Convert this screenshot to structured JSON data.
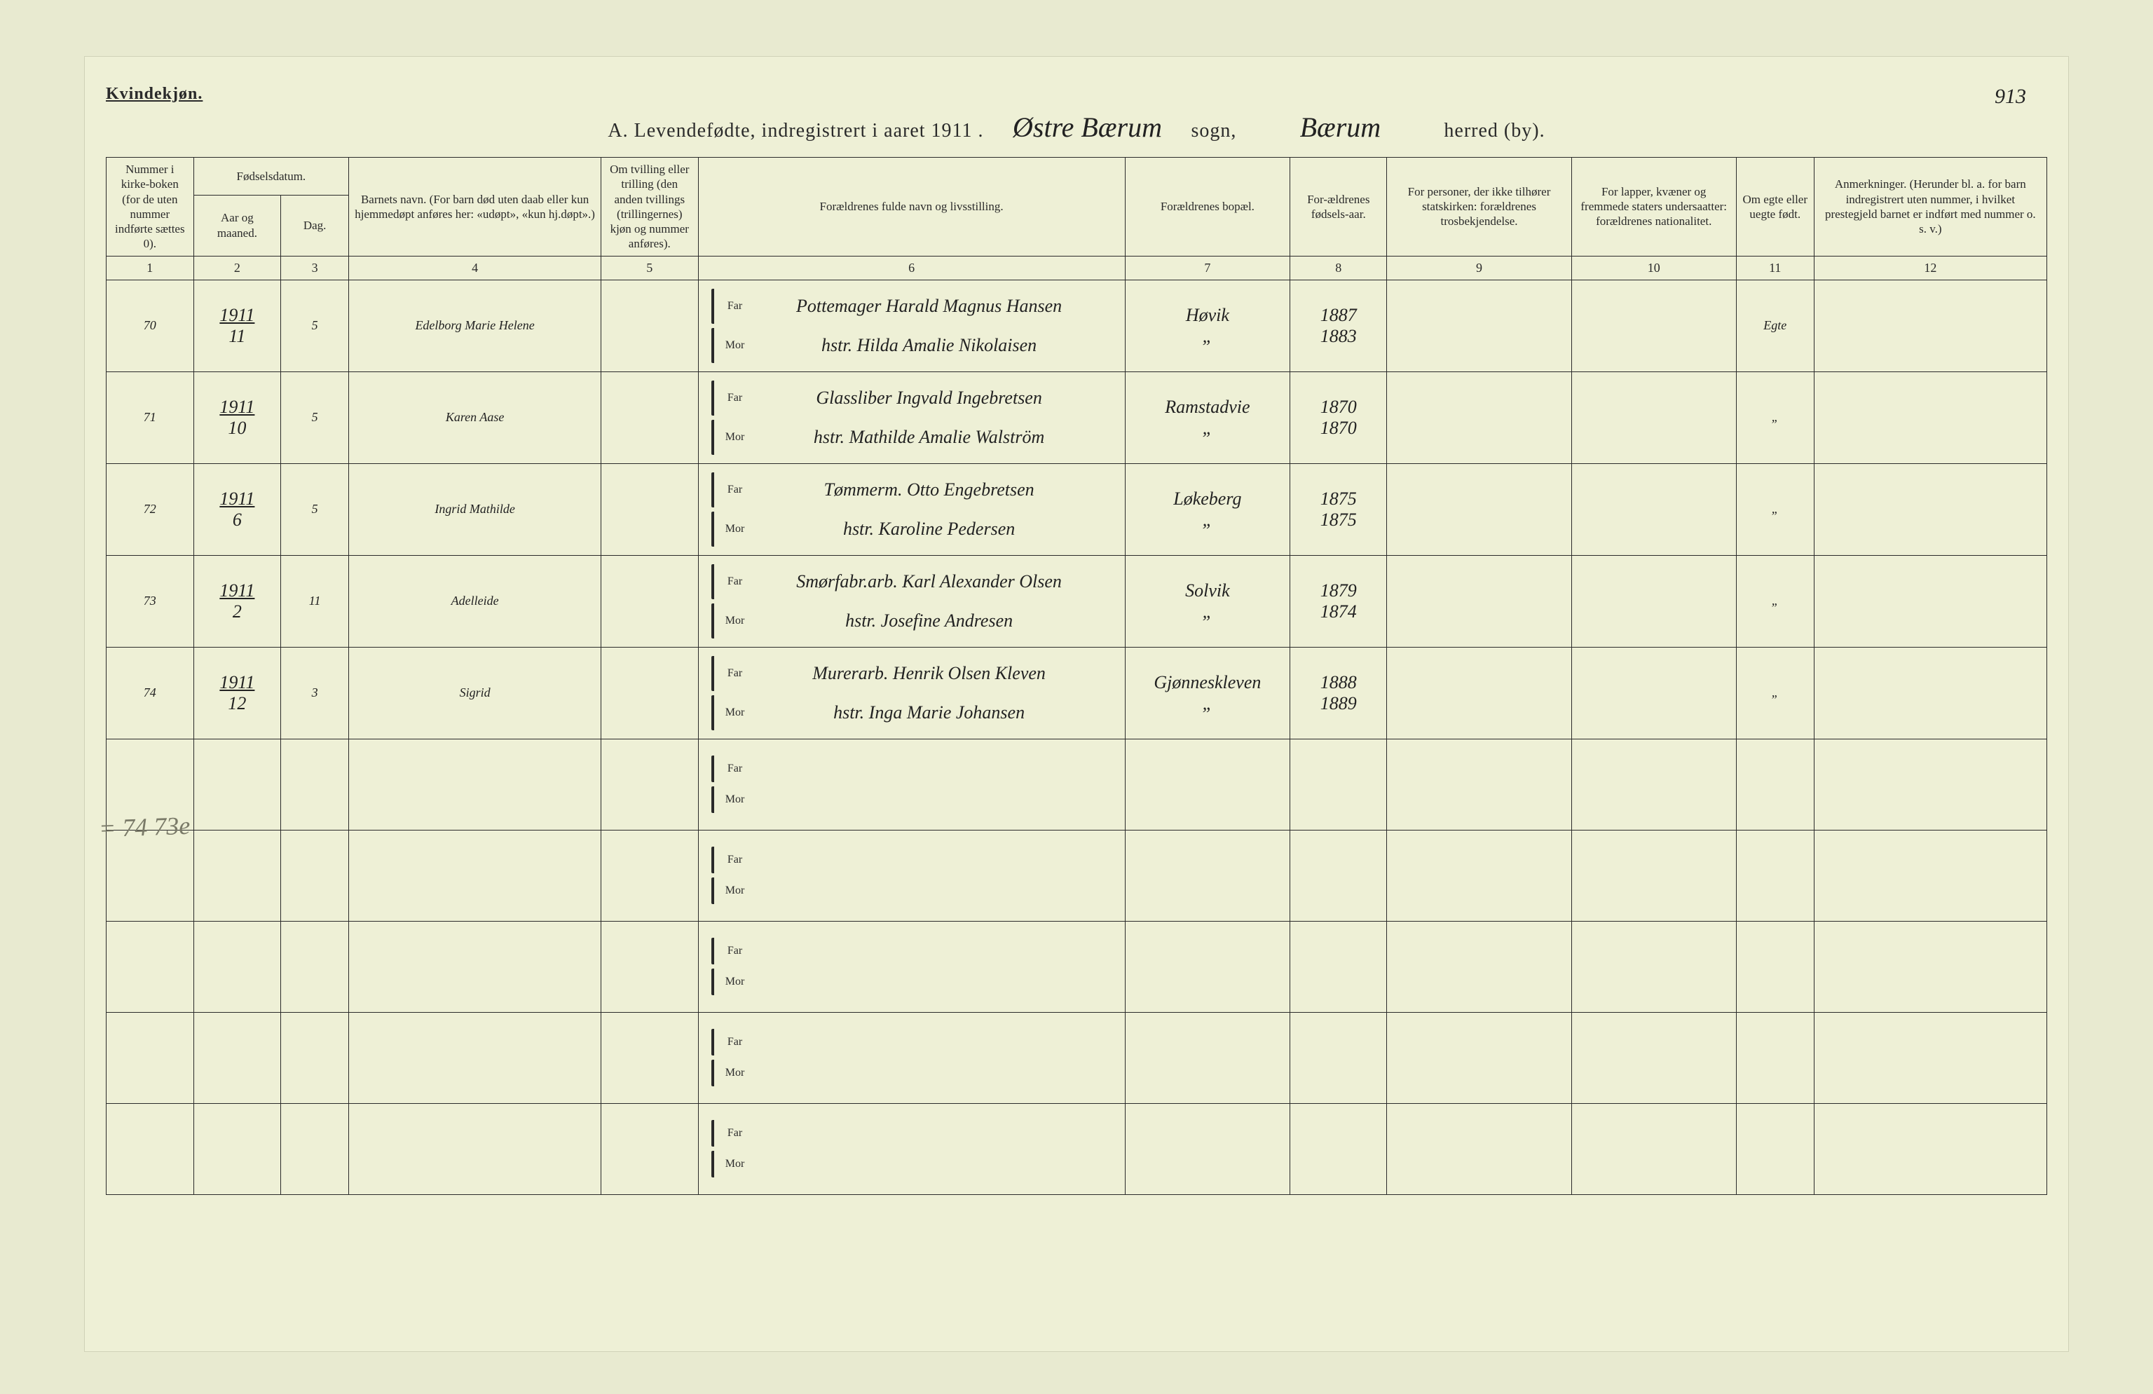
{
  "page": {
    "gender_label": "Kvindekjøn.",
    "page_number": "913",
    "title_prefix": "A.  Levendefødte, indregistrert i aaret 1911 .",
    "sogn_value": "Østre Bærum",
    "sogn_label": "sogn,",
    "herred_value": "Bærum",
    "herred_label": "herred (by).",
    "margin_note": "= 74\n73e"
  },
  "headers": {
    "c1": "Nummer i kirke-boken (for de uten nummer indførte sættes 0).",
    "c23_top": "Fødselsdatum.",
    "c2": "Aar og maaned.",
    "c3": "Dag.",
    "c4": "Barnets navn.\n(For barn død uten daab eller kun hjemmedøpt anføres her: «udøpt», «kun hj.døpt».)",
    "c5": "Om tvilling eller trilling (den anden tvillings (trillingernes) kjøn og nummer anføres).",
    "c6": "Forældrenes fulde navn og livsstilling.",
    "c7": "Forældrenes bopæl.",
    "c8": "For-ældrenes fødsels-aar.",
    "c9": "For personer, der ikke tilhører statskirken: forældrenes trosbekjendelse.",
    "c10": "For lapper, kvæner og fremmede staters undersaatter: forældrenes nationalitet.",
    "c11": "Om egte eller uegte født.",
    "c12": "Anmerkninger.\n(Herunder bl. a. for barn indregistrert uten nummer, i hvilket prestegjeld barnet er indført med nummer o. s. v.)",
    "colnums": [
      "1",
      "2",
      "3",
      "4",
      "5",
      "6",
      "7",
      "8",
      "9",
      "10",
      "11",
      "12"
    ],
    "far": "Far",
    "mor": "Mor"
  },
  "rows": [
    {
      "num": "70",
      "year_upper": "1911",
      "month": "11",
      "day": "5",
      "child": "Edelborg Marie Helene",
      "father": "Pottemager Harald Magnus Hansen",
      "mother": "hstr. Hilda Amalie Nikolaisen",
      "residence_f": "Høvik",
      "residence_m": "„",
      "birth_f": "1887",
      "birth_m": "1883",
      "legit": "Egte"
    },
    {
      "num": "71",
      "year_upper": "1911",
      "month": "10",
      "day": "5",
      "child": "Karen Aase",
      "father": "Glassliber Ingvald Ingebretsen",
      "mother": "hstr. Mathilde Amalie Walström",
      "residence_f": "Ramstadvie",
      "residence_m": "„",
      "birth_f": "1870",
      "birth_m": "1870",
      "legit": "„"
    },
    {
      "num": "72",
      "year_upper": "1911",
      "month": "6",
      "day": "5",
      "child": "Ingrid Mathilde",
      "father": "Tømmerm. Otto Engebretsen",
      "mother": "hstr. Karoline Pedersen",
      "residence_f": "Løkeberg",
      "residence_m": "„",
      "birth_f": "1875",
      "birth_m": "1875",
      "legit": "„"
    },
    {
      "num": "73",
      "year_upper": "1911",
      "month": "2",
      "day": "11",
      "child": "Adelleide",
      "father": "Smørfabr.arb. Karl Alexander Olsen",
      "mother": "hstr. Josefine Andresen",
      "residence_f": "Solvik",
      "residence_m": "„",
      "birth_f": "1879",
      "birth_m": "1874",
      "legit": "„"
    },
    {
      "num": "74",
      "year_upper": "1911",
      "month": "12",
      "day": "3",
      "child": "Sigrid",
      "father": "Murerarb. Henrik Olsen Kleven",
      "mother": "hstr. Inga Marie Johansen",
      "residence_f": "Gjønneskleven",
      "residence_m": "„",
      "birth_f": "1888",
      "birth_m": "1889",
      "legit": "„"
    }
  ],
  "empty_rows": 5,
  "style": {
    "page_bg": "#eef0d6",
    "outer_bg": "#e8ead0",
    "ink": "#2a2a2a",
    "hand_font": "Brush Script MT",
    "print_font": "Georgia",
    "header_fontsize": 17,
    "body_fontsize": 18,
    "hand_fontsize": 30
  }
}
